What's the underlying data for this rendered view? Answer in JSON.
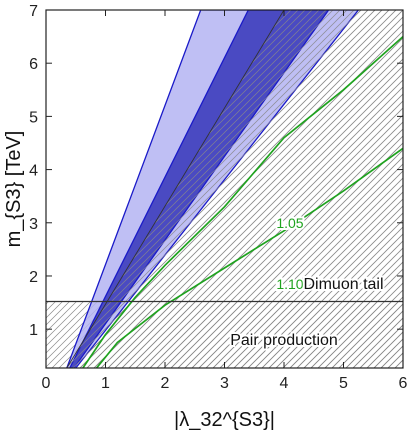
{
  "chart_data": {
    "type": "region",
    "title": "",
    "xlabel": "|λ_32^{S3}|",
    "ylabel": "m_{S3} [TeV]",
    "xlim": [
      0,
      6
    ],
    "ylim": [
      0.27,
      7
    ],
    "xticks": [
      "0",
      "1",
      "2",
      "3",
      "4",
      "5",
      "6"
    ],
    "yticks": [
      "1",
      "2",
      "3",
      "4",
      "5",
      "6",
      "7"
    ],
    "grid": false,
    "colors": {
      "outer_band": "#b4b4f2",
      "inner_band": "#3535b8",
      "band_edge": "#1a1ac8",
      "contour": "#1fa31f",
      "hatch": "#8a8a8a",
      "pair_line": "#333333"
    },
    "bands": [
      {
        "role": "outer",
        "left_edge": [
          [
            0.35,
            0.27
          ],
          [
            2.6,
            7.0
          ]
        ],
        "right_edge": [
          [
            0.5,
            0.27
          ],
          [
            5.25,
            7.0
          ]
        ]
      },
      {
        "role": "inner",
        "left_edge": [
          [
            0.4,
            0.27
          ],
          [
            3.4,
            7.0
          ]
        ],
        "right_edge": [
          [
            0.47,
            0.27
          ],
          [
            4.75,
            7.0
          ]
        ]
      }
    ],
    "hatched_region": {
      "boundary": [
        [
          0.35,
          0.27
        ],
        [
          4.0,
          7.0
        ]
      ]
    },
    "pair_production_limit": 1.52,
    "contours": [
      {
        "label": "1.05",
        "points": [
          [
            0.62,
            0.27
          ],
          [
            1.0,
            0.9
          ],
          [
            1.5,
            1.6
          ],
          [
            2.0,
            2.2
          ],
          [
            3.0,
            3.3
          ],
          [
            4.0,
            4.6
          ],
          [
            5.0,
            5.5
          ],
          [
            6.0,
            6.5
          ]
        ],
        "label_at": [
          4.1,
          3.0
        ]
      },
      {
        "label": "1.10",
        "points": [
          [
            0.85,
            0.27
          ],
          [
            1.2,
            0.75
          ],
          [
            2.0,
            1.45
          ],
          [
            3.0,
            2.15
          ],
          [
            4.0,
            2.85
          ],
          [
            5.0,
            3.6
          ],
          [
            6.0,
            4.4
          ]
        ],
        "label_at": [
          4.1,
          1.85
        ]
      }
    ],
    "annotations": [
      {
        "text": "Dimuon tail",
        "at": [
          5.0,
          1.85
        ]
      },
      {
        "text": "Pair production",
        "at": [
          4.0,
          0.8
        ]
      }
    ]
  }
}
